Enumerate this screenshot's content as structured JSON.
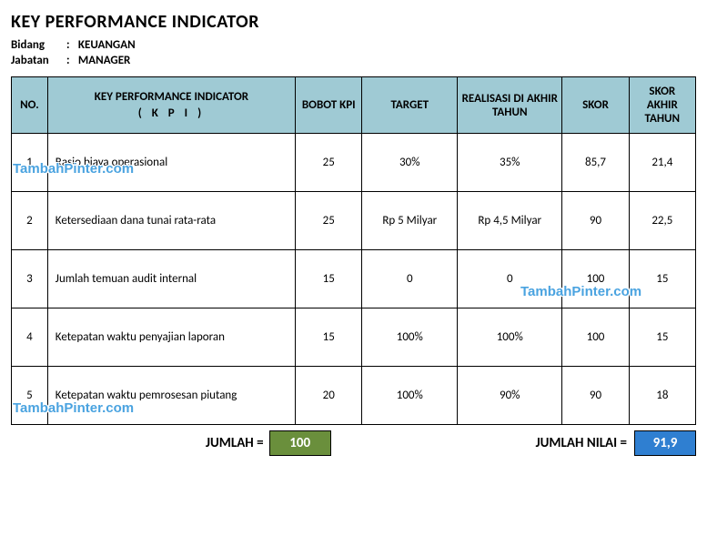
{
  "title": "KEY PERFORMANCE INDICATOR",
  "meta": {
    "bidang_label": "Bidang",
    "bidang_value": "KEUANGAN",
    "jabatan_label": "Jabatan",
    "jabatan_value": "MANAGER"
  },
  "columns": {
    "no": "NO.",
    "kpi_main": "KEY PERFORMANCE INDICATOR",
    "kpi_sub": "( K P I )",
    "bobot": "BOBOT KPI",
    "target": "TARGET",
    "realisasi": "REALISASI DI AKHIR TAHUN",
    "skor": "SKOR",
    "skor_akhir": "SKOR AKHIR TAHUN"
  },
  "rows": [
    {
      "no": "1",
      "kpi": "Rasio biaya operasional",
      "bobot": "25",
      "target": "30%",
      "realisasi": "35%",
      "skor": "85,7",
      "akhir": "21,4"
    },
    {
      "no": "2",
      "kpi": "Ketersediaan dana tunai rata-rata",
      "bobot": "25",
      "target": "Rp 5 Milyar",
      "realisasi": "Rp 4,5 Milyar",
      "skor": "90",
      "akhir": "22,5"
    },
    {
      "no": "3",
      "kpi": "Jumlah temuan audit internal",
      "bobot": "15",
      "target": "0",
      "realisasi": "0",
      "skor": "100",
      "akhir": "15"
    },
    {
      "no": "4",
      "kpi": "Ketepatan waktu penyajian laporan",
      "bobot": "15",
      "target": "100%",
      "realisasi": "100%",
      "skor": "100",
      "akhir": "15"
    },
    {
      "no": "5",
      "kpi": "Ketepatan waktu pemrosesan piutang",
      "bobot": "20",
      "target": "100%",
      "realisasi": "90%",
      "skor": "90",
      "akhir": "18"
    }
  ],
  "footer": {
    "jumlah_label": "JUMLAH =",
    "jumlah_value": "100",
    "jumlah_nilai_label": "JUMLAH NILAI =",
    "jumlah_nilai_value": "91,9"
  },
  "watermark_text": "TambahPinter.com",
  "colors": {
    "header_bg": "#9fcad4",
    "green_box": "#6a8f3c",
    "blue_box": "#2f7fd1",
    "watermark": "#4aa3e0"
  }
}
